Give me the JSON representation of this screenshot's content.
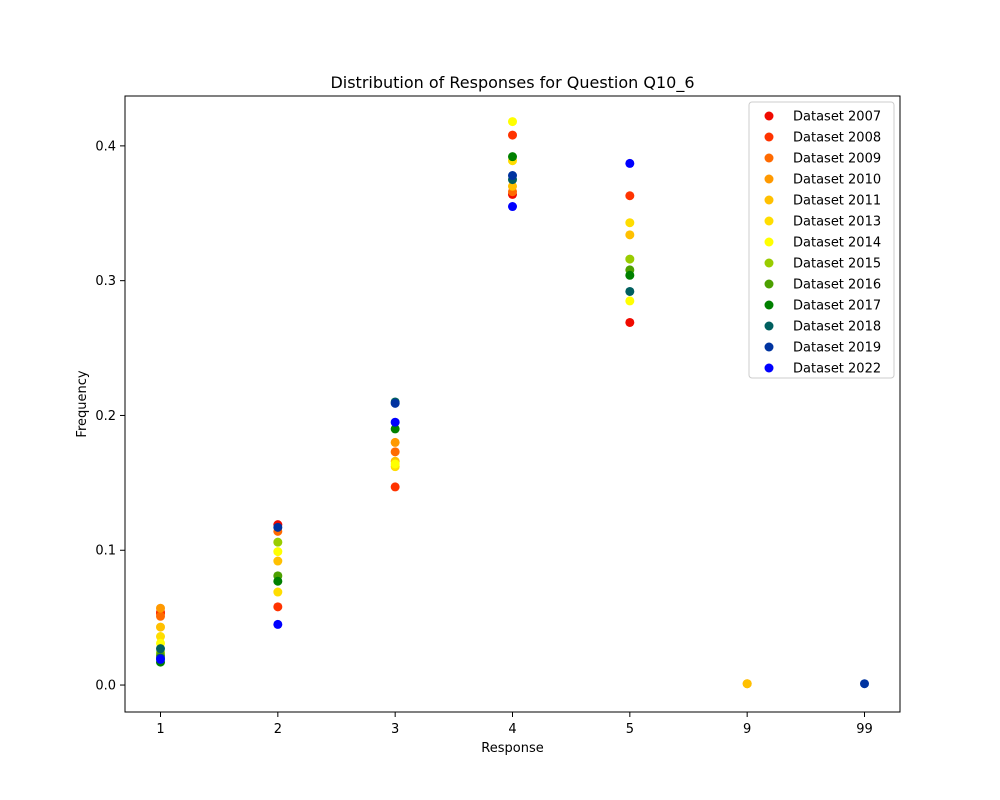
{
  "chart_data": {
    "type": "scatter",
    "title": "Distribution of Responses for Question Q10_6",
    "xlabel": "Response",
    "ylabel": "Frequency",
    "categories": [
      "1",
      "2",
      "3",
      "4",
      "5",
      "9",
      "99"
    ],
    "y_ticks": [
      "0.0",
      "0.1",
      "0.2",
      "0.3",
      "0.4"
    ],
    "ylim": [
      -0.02,
      0.437
    ],
    "legend_position": "top-right",
    "grid": false,
    "series": [
      {
        "name": "Dataset 2007",
        "color": "#f00a00",
        "values": [
          0.054,
          0.119,
          null,
          0.364,
          0.269,
          null,
          null
        ]
      },
      {
        "name": "Dataset 2008",
        "color": "#ff3300",
        "values": [
          0.053,
          0.058,
          0.147,
          0.408,
          0.363,
          null,
          null
        ]
      },
      {
        "name": "Dataset 2009",
        "color": "#ff6a00",
        "values": [
          0.051,
          0.114,
          0.173,
          0.366,
          null,
          null,
          null
        ]
      },
      {
        "name": "Dataset 2010",
        "color": "#ff9900",
        "values": [
          0.057,
          null,
          0.18,
          null,
          null,
          0.001,
          null
        ]
      },
      {
        "name": "Dataset 2011",
        "color": "#ffc000",
        "values": [
          0.043,
          0.092,
          0.166,
          0.37,
          0.334,
          0.001,
          null
        ]
      },
      {
        "name": "Dataset 2013",
        "color": "#ffdd00",
        "values": [
          0.036,
          0.069,
          0.162,
          0.389,
          0.343,
          null,
          null
        ]
      },
      {
        "name": "Dataset 2014",
        "color": "#ffff00",
        "values": [
          0.031,
          0.099,
          0.164,
          0.418,
          0.285,
          null,
          null
        ]
      },
      {
        "name": "Dataset 2015",
        "color": "#99cc00",
        "values": [
          0.024,
          0.106,
          null,
          null,
          0.316,
          null,
          null
        ]
      },
      {
        "name": "Dataset 2016",
        "color": "#4ca000",
        "values": [
          0.022,
          0.081,
          null,
          null,
          0.308,
          null,
          null
        ]
      },
      {
        "name": "Dataset 2017",
        "color": "#008000",
        "values": [
          0.017,
          0.077,
          0.19,
          0.392,
          0.304,
          null,
          null
        ]
      },
      {
        "name": "Dataset 2018",
        "color": "#005f5f",
        "values": [
          0.027,
          null,
          0.21,
          0.375,
          0.292,
          null,
          null
        ]
      },
      {
        "name": "Dataset 2019",
        "color": "#0033a0",
        "values": [
          0.02,
          0.117,
          0.209,
          0.378,
          null,
          null,
          0.001
        ]
      },
      {
        "name": "Dataset 2022",
        "color": "#0000ff",
        "values": [
          0.019,
          0.045,
          0.195,
          0.355,
          0.387,
          null,
          null
        ]
      }
    ]
  }
}
